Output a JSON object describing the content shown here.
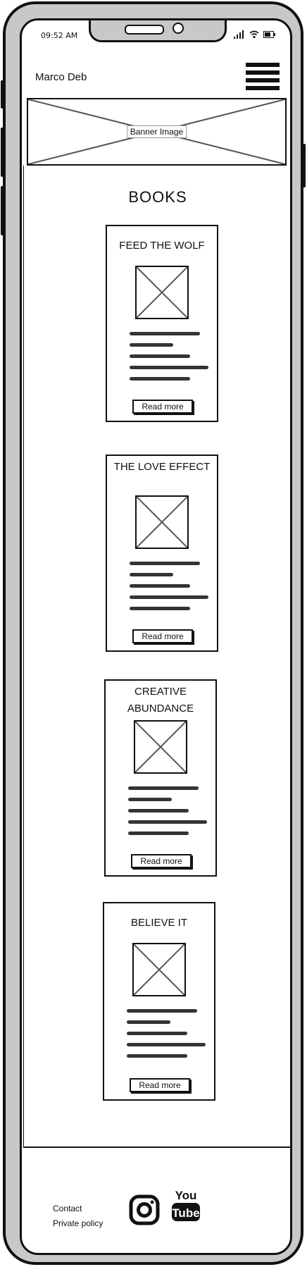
{
  "status": {
    "time": "09:52 AM"
  },
  "header": {
    "title": "Marco Deb"
  },
  "banner": {
    "label": "Banner Image"
  },
  "section": {
    "title": "BOOKS"
  },
  "books": [
    {
      "title": "FEED THE WOLF",
      "button": "Read more"
    },
    {
      "title": "THE LOVE EFFECT",
      "button": "Read more"
    },
    {
      "title": "CREATIVE ABUNDANCE",
      "button": "Read more"
    },
    {
      "title": "BELIEVE IT",
      "button": "Read more"
    }
  ],
  "footer": {
    "contact": "Contact",
    "privacy": "Private policy"
  },
  "icons": {
    "menu": "hamburger-menu-icon",
    "instagram": "instagram-icon",
    "youtube": "youtube-icon"
  }
}
